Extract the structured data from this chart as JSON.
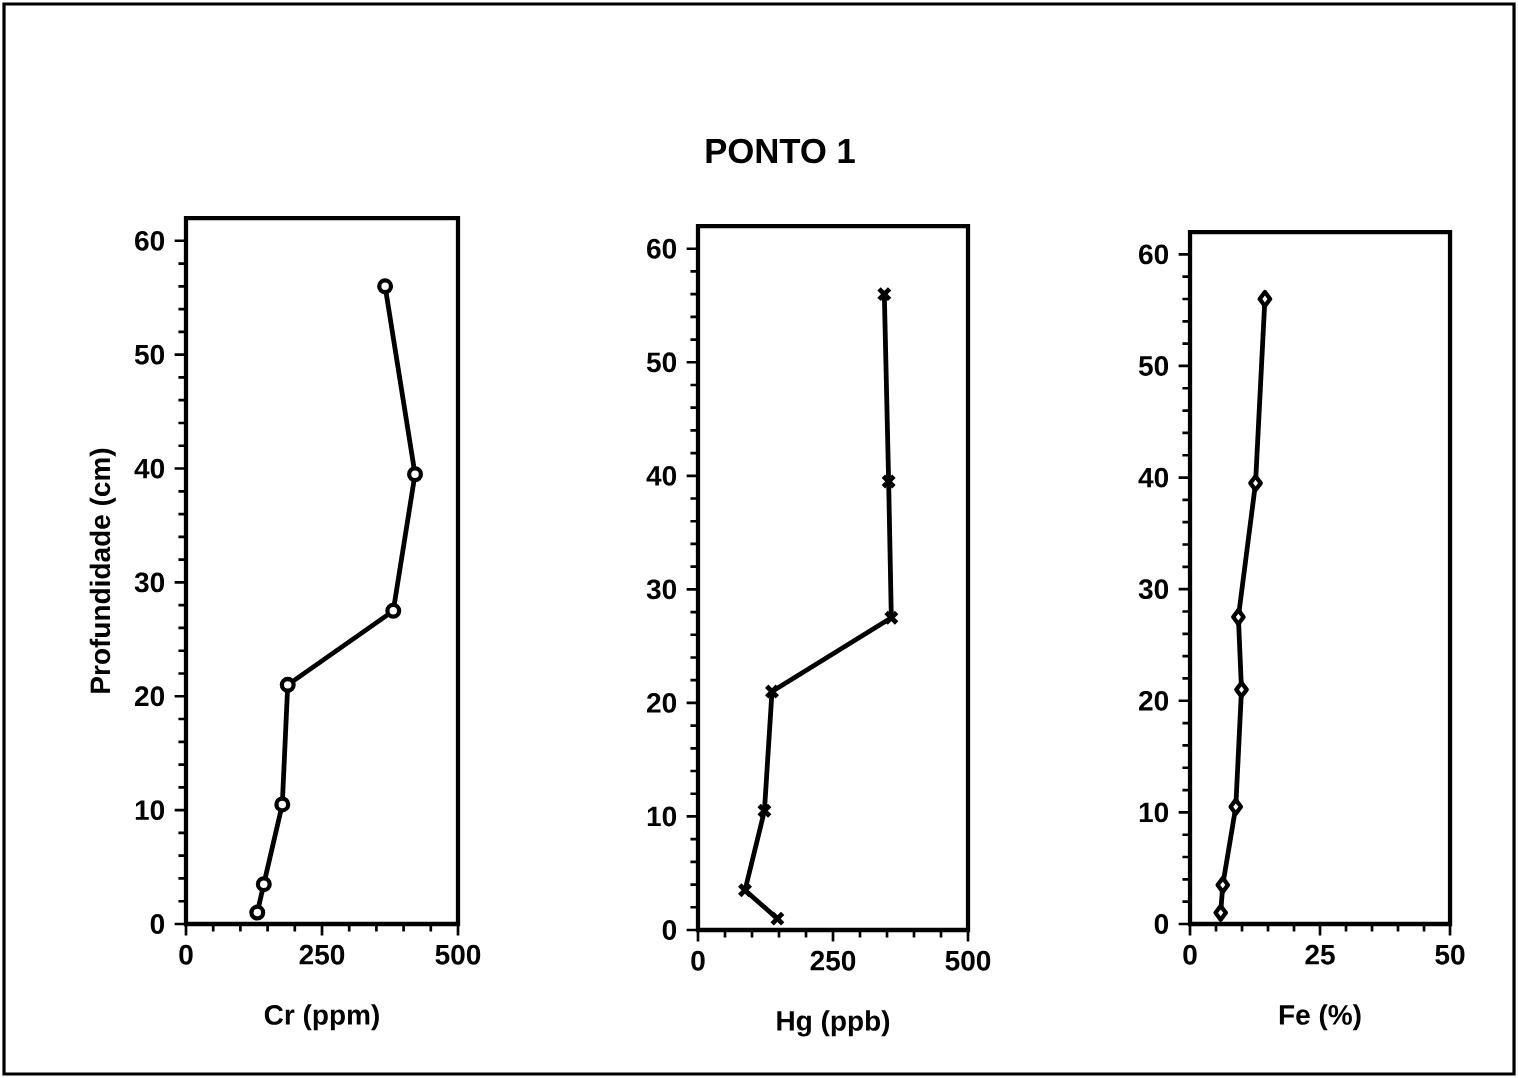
{
  "chart_data": [
    {
      "type": "line",
      "xlabel": "Cr (ppm)",
      "ylabel": "Profundidade (cm)",
      "marker": "circle",
      "line_style": "solid",
      "color": "#000000",
      "x": [
        131,
        143,
        177,
        187,
        381,
        421,
        366
      ],
      "values": [
        1,
        3.5,
        10.5,
        21,
        27.5,
        39.5,
        56
      ],
      "xlim": [
        0,
        500
      ],
      "ylim": [
        0,
        62
      ],
      "xticks": [
        0,
        250,
        500
      ],
      "yticks": [
        0,
        10,
        20,
        30,
        40,
        50,
        60
      ]
    },
    {
      "type": "line",
      "title": "PONTO 1",
      "xlabel": "Hg (ppb)",
      "marker": "cross",
      "line_style": "solid",
      "color": "#000000",
      "x": [
        147,
        87,
        123,
        137,
        358,
        353,
        345
      ],
      "values": [
        1,
        3.5,
        10.5,
        21,
        27.5,
        39.5,
        56
      ],
      "xlim": [
        0,
        500
      ],
      "ylim": [
        0,
        62
      ],
      "xticks": [
        0,
        250,
        500
      ],
      "yticks": [
        0,
        10,
        20,
        30,
        40,
        50,
        60
      ]
    },
    {
      "type": "line",
      "xlabel": "Fe (%)",
      "marker": "diamond",
      "line_style": "solid",
      "color": "#000000",
      "x": [
        5.9,
        6.3,
        8.8,
        9.9,
        9.3,
        12.6,
        14.4
      ],
      "values": [
        1,
        3.5,
        10.5,
        21,
        27.5,
        39.5,
        56
      ],
      "xlim": [
        0,
        50
      ],
      "ylim": [
        0,
        62
      ],
      "xticks": [
        0,
        25,
        50
      ],
      "yticks": [
        0,
        10,
        20,
        30,
        40,
        50,
        60
      ]
    }
  ]
}
